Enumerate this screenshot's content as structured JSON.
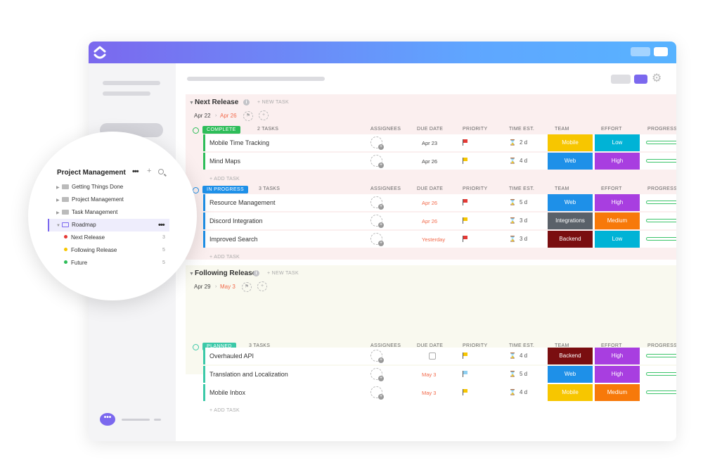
{
  "sidebar_popup": {
    "title": "Project Management",
    "folders": [
      {
        "label": "Getting Things Done"
      },
      {
        "label": "Project Management"
      },
      {
        "label": "Task Management"
      },
      {
        "label": "Roadmap"
      }
    ],
    "lists": [
      {
        "label": "Next Release",
        "count": "3",
        "color": "#e53935"
      },
      {
        "label": "Following Release",
        "count": "5",
        "color": "#f7c600"
      },
      {
        "label": "Future",
        "count": "5",
        "color": "#2ebd59"
      }
    ]
  },
  "columns": {
    "assignees": "ASSIGNEES",
    "due_date": "DUE DATE",
    "priority": "PRIORITY",
    "time_est": "TIME EST.",
    "team": "TEAM",
    "effort": "EFFORT",
    "progress": "PROGRESS"
  },
  "new_task": "+ NEW TASK",
  "add_task": "+ ADD TASK",
  "sections": [
    {
      "title": "Next Release",
      "start": "Apr 22",
      "end": "Apr 26",
      "groups": [
        {
          "status": "COMPLETE",
          "status_color": "#2ebd59",
          "count": "2 TASKS",
          "tasks": [
            {
              "name": "Mobile Time Tracking",
              "due": "Apr 23",
              "due_red": false,
              "flag": "#e53935",
              "time": "2 d",
              "team": "Mobile",
              "team_color": "#f7c600",
              "effort": "Low",
              "effort_color": "#00b3d6"
            },
            {
              "name": "Mind Maps",
              "due": "Apr 26",
              "due_red": false,
              "flag": "#f7c600",
              "time": "4 d",
              "team": "Web",
              "team_color": "#1e90e8",
              "effort": "High",
              "effort_color": "#a83ee0"
            }
          ]
        },
        {
          "status": "IN PROGRESS",
          "status_color": "#1e90e8",
          "count": "3 TASKS",
          "tasks": [
            {
              "name": "Resource Management",
              "due": "Apr 26",
              "due_red": true,
              "flag": "#e53935",
              "time": "5 d",
              "team": "Web",
              "team_color": "#1e90e8",
              "effort": "High",
              "effort_color": "#a83ee0"
            },
            {
              "name": "Discord Integration",
              "due": "Apr 26",
              "due_red": true,
              "flag": "#f7c600",
              "time": "3 d",
              "team": "Integrations",
              "team_color": "#5a6169",
              "effort": "Medium",
              "effort_color": "#f7790a"
            },
            {
              "name": "Improved Search",
              "due": "Yesterday",
              "due_red": true,
              "flag": "#e53935",
              "time": "3 d",
              "team": "Backend",
              "team_color": "#7a0e10",
              "effort": "Low",
              "effort_color": "#00b3d6"
            }
          ]
        }
      ]
    },
    {
      "title": "Following Release",
      "start": "Apr 29",
      "end": "May 3",
      "groups": [
        {
          "status": "PLANNED",
          "status_color": "#3cc9a8",
          "count": "3 TASKS",
          "tasks": [
            {
              "name": "Overhauled API",
              "due": "",
              "due_red": false,
              "flag": "#f7c600",
              "time": "4 d",
              "team": "Backend",
              "team_color": "#7a0e10",
              "effort": "High",
              "effort_color": "#a83ee0"
            },
            {
              "name": "Translation and Localization",
              "due": "May 3",
              "due_red": true,
              "flag": "#8fd0f2",
              "time": "5 d",
              "team": "Web",
              "team_color": "#1e90e8",
              "effort": "High",
              "effort_color": "#a83ee0"
            },
            {
              "name": "Mobile Inbox",
              "due": "May 3",
              "due_red": true,
              "flag": "#f7c600",
              "time": "4 d",
              "team": "Mobile",
              "team_color": "#f7c600",
              "effort": "Medium",
              "effort_color": "#f7790a"
            }
          ]
        }
      ]
    }
  ]
}
